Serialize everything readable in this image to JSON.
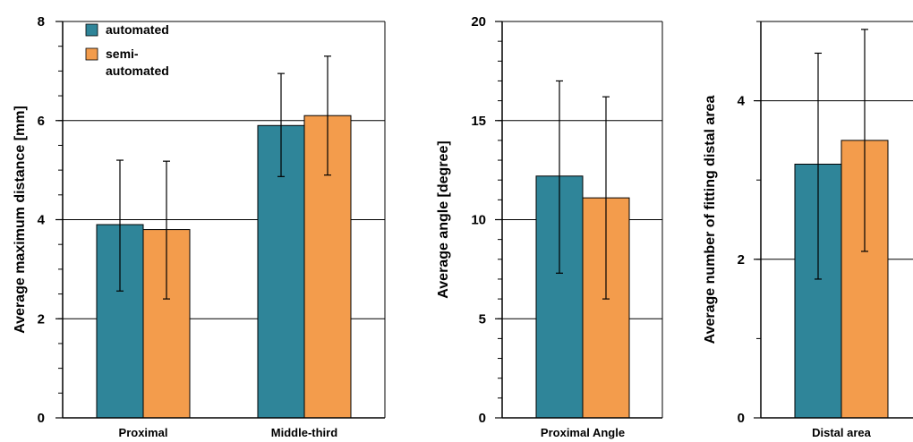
{
  "colors": {
    "automated": "#2f8599",
    "semi_automated": "#f39c4c",
    "axis": "#000000",
    "grid": "#000000"
  },
  "legend": [
    {
      "key": "automated",
      "lines": [
        "automated"
      ]
    },
    {
      "key": "semi_automated",
      "lines": [
        "semi-",
        "automated"
      ]
    }
  ],
  "chart_data": [
    {
      "type": "bar",
      "categories": [
        "Proximal",
        "Middle-third"
      ],
      "ylabel": "Average maximum distance [mm]",
      "ylim": [
        0,
        8
      ],
      "yticks": [
        0,
        2,
        4,
        6,
        8
      ],
      "minor_step": 0.5,
      "grid": true,
      "legend_position": "top-left",
      "series": [
        {
          "name": "automated",
          "color_key": "automated",
          "values": [
            3.9,
            5.9
          ],
          "err_low": [
            2.56,
            4.87
          ],
          "err_high": [
            5.2,
            6.95
          ]
        },
        {
          "name": "semi-automated",
          "color_key": "semi_automated",
          "values": [
            3.8,
            6.1
          ],
          "err_low": [
            2.4,
            4.9
          ],
          "err_high": [
            5.18,
            7.3
          ]
        }
      ]
    },
    {
      "type": "bar",
      "categories": [
        "Proximal Angle"
      ],
      "ylabel": "Average angle [degree]",
      "ylim": [
        0,
        20
      ],
      "yticks": [
        0,
        5,
        10,
        15,
        20
      ],
      "minor_step": 1,
      "grid": true,
      "series": [
        {
          "name": "automated",
          "color_key": "automated",
          "values": [
            12.2
          ],
          "err_low": [
            7.3
          ],
          "err_high": [
            17.0
          ]
        },
        {
          "name": "semi-automated",
          "color_key": "semi_automated",
          "values": [
            11.1
          ],
          "err_low": [
            6.0
          ],
          "err_high": [
            16.2
          ]
        }
      ]
    },
    {
      "type": "bar",
      "categories": [
        "Distal area"
      ],
      "ylabel": "Average number of fitting distal area",
      "ylim": [
        0,
        5
      ],
      "yticks": [
        0,
        2,
        4
      ],
      "minor_step": 1,
      "grid": true,
      "series": [
        {
          "name": "automated",
          "color_key": "automated",
          "values": [
            3.2
          ],
          "err_low": [
            1.75
          ],
          "err_high": [
            4.6
          ]
        },
        {
          "name": "semi-automated",
          "color_key": "semi_automated",
          "values": [
            3.5
          ],
          "err_low": [
            2.1
          ],
          "err_high": [
            4.9
          ]
        }
      ]
    }
  ]
}
